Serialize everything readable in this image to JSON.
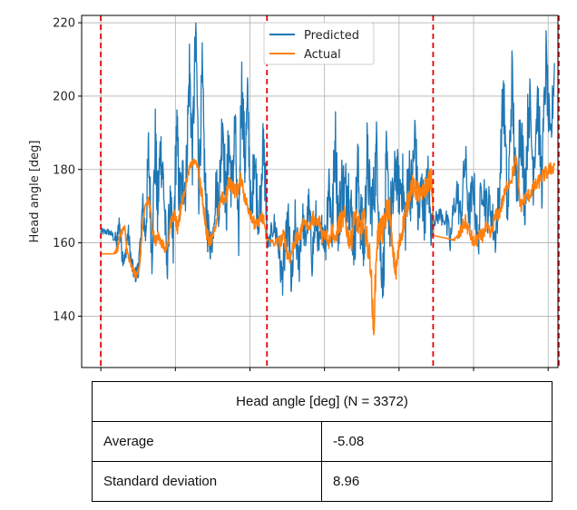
{
  "chart_data": {
    "type": "line",
    "xlabel": "",
    "ylabel": "Head angle [deg]",
    "ylim": [
      126,
      222
    ],
    "xlim": [
      -450,
      10730
    ],
    "y_ticks": [
      140,
      160,
      180,
      200,
      220
    ],
    "x_ticks": [
      0,
      1750,
      3500,
      5250,
      7000,
      8750,
      10500
    ],
    "grid": true,
    "legend": "top-center",
    "colors": {
      "Predicted": "#1f77b4",
      "Actual": "#ff7f0e",
      "boundary": "#e8000b"
    },
    "vertical_lines": [
      0,
      3900,
      7800,
      10750
    ],
    "series": [
      {
        "name": "Predicted",
        "x": [
          0,
          80,
          180,
          280,
          380,
          430,
          500,
          560,
          640,
          720,
          800,
          860,
          920,
          980,
          1050,
          1120,
          1200,
          1280,
          1330,
          1400,
          1470,
          1550,
          1620,
          1700,
          1780,
          1850,
          1930,
          2000,
          2080,
          2150,
          2230,
          2300,
          2380,
          2450,
          2500,
          2560,
          2620,
          2700,
          2780,
          2860,
          2940,
          3000,
          3080,
          3150,
          3230,
          3300,
          3380,
          3450,
          3530,
          3600,
          3680,
          3750,
          3820,
          3880,
          3900,
          3950,
          4050,
          4150,
          4250,
          4330,
          4400,
          4480,
          4560,
          4650,
          4730,
          4800,
          4880,
          4960,
          5050,
          5130,
          5200,
          5280,
          5350,
          5430,
          5500,
          5580,
          5650,
          5730,
          5800,
          5880,
          5950,
          6030,
          6100,
          6180,
          6250,
          6330,
          6400,
          6480,
          6550,
          6630,
          6700,
          6780,
          6850,
          6930,
          7000,
          7080,
          7150,
          7230,
          7300,
          7380,
          7450,
          7530,
          7600,
          7680,
          7750,
          7800,
          7900,
          8050,
          8200,
          8350,
          8450,
          8550,
          8650,
          8750,
          8850,
          8950,
          9050,
          9150,
          9250,
          9350,
          9450,
          9550,
          9650,
          9750,
          9850,
          9950,
          10050,
          10150,
          10250,
          10350,
          10450,
          10550,
          10650
        ],
        "values": [
          163,
          163,
          163,
          162,
          160,
          166,
          157,
          155,
          163,
          154,
          151,
          152,
          157,
          170,
          162,
          184,
          158,
          188,
          168,
          186,
          177,
          153,
          171,
          158,
          192,
          170,
          178,
          176,
          208,
          184,
          218,
          176,
          205,
          174,
          164,
          160,
          160,
          175,
          172,
          196,
          168,
          188,
          174,
          192,
          158,
          205,
          182,
          198,
          164,
          186,
          170,
          168,
          189,
          172,
          160,
          160,
          165,
          162,
          150,
          158,
          166,
          147,
          165,
          154,
          168,
          160,
          170,
          156,
          167,
          158,
          165,
          160,
          178,
          163,
          190,
          164,
          176,
          173,
          176,
          168,
          160,
          180,
          166,
          158,
          184,
          170,
          172,
          186,
          160,
          150,
          181,
          167,
          170,
          181,
          174,
          177,
          165,
          180,
          173,
          190,
          166,
          175,
          168,
          178,
          164,
          166,
          167,
          168,
          160,
          175,
          166,
          183,
          167,
          176,
          159,
          178,
          169,
          170,
          161,
          173,
          202,
          166,
          205,
          171,
          195,
          172,
          200,
          180,
          200,
          176,
          210,
          184,
          209
        ],
        "noise": [
          1,
          1,
          1,
          1,
          3,
          2,
          3,
          2,
          3,
          3,
          2,
          3,
          4,
          5,
          5,
          10,
          8,
          10,
          10,
          9,
          8,
          7,
          7,
          9,
          10,
          10,
          8,
          9,
          10,
          9,
          10,
          9,
          10,
          9,
          7,
          5,
          3,
          6,
          9,
          9,
          10,
          9,
          9,
          10,
          8,
          10,
          10,
          10,
          6,
          9,
          8,
          7,
          10,
          9,
          2,
          2,
          4,
          5,
          6,
          6,
          6,
          7,
          7,
          7,
          5,
          5,
          6,
          6,
          5,
          5,
          5,
          6,
          10,
          10,
          10,
          10,
          10,
          10,
          10,
          9,
          10,
          10,
          10,
          10,
          10,
          9,
          10,
          10,
          9,
          8,
          10,
          10,
          9,
          9,
          8,
          9,
          8,
          10,
          10,
          10,
          8,
          8,
          8,
          7,
          6,
          2,
          2,
          4,
          5,
          6,
          6,
          7,
          7,
          7,
          6,
          7,
          7,
          6,
          6,
          7,
          10,
          10,
          10,
          10,
          10,
          10,
          10,
          10,
          10,
          9,
          9,
          9,
          5
        ]
      },
      {
        "name": "Actual",
        "x": [
          0,
          200,
          300,
          380,
          420,
          480,
          560,
          620,
          700,
          780,
          850,
          920,
          980,
          1050,
          1120,
          1200,
          1280,
          1350,
          1430,
          1500,
          1580,
          1650,
          1730,
          1800,
          1880,
          1950,
          2030,
          2100,
          2180,
          2250,
          2330,
          2400,
          2480,
          2550,
          2620,
          2700,
          2780,
          2850,
          2930,
          3000,
          3080,
          3150,
          3230,
          3300,
          3380,
          3450,
          3530,
          3600,
          3680,
          3750,
          3830,
          3890,
          3910,
          4050,
          4200,
          4300,
          4380,
          4450,
          4530,
          4600,
          4680,
          4750,
          4830,
          4900,
          4980,
          5050,
          5130,
          5200,
          5280,
          5350,
          5430,
          5500,
          5580,
          5650,
          5730,
          5800,
          5880,
          5950,
          6030,
          6100,
          6180,
          6250,
          6330,
          6400,
          6480,
          6550,
          6630,
          6700,
          6780,
          6850,
          6930,
          7000,
          7080,
          7150,
          7230,
          7300,
          7380,
          7450,
          7530,
          7600,
          7680,
          7750,
          7790,
          7810,
          8200,
          8350,
          8450,
          8550,
          8650,
          8750,
          8850,
          8950,
          9050,
          9150,
          9250,
          9350,
          9450,
          9550,
          9650,
          9750,
          9850,
          9950,
          10050,
          10150,
          10250,
          10350,
          10450,
          10550,
          10650
        ],
        "values": [
          157,
          157,
          157,
          158,
          160,
          163,
          164,
          157,
          154,
          152,
          151,
          155,
          165,
          170,
          172,
          165,
          160,
          162,
          160,
          158,
          160,
          166,
          168,
          164,
          170,
          173,
          178,
          181,
          182,
          182,
          176,
          171,
          163,
          160,
          162,
          165,
          170,
          172,
          172,
          176,
          176,
          174,
          175,
          178,
          172,
          170,
          168,
          165,
          165,
          167,
          166,
          161,
          161,
          160,
          160,
          162,
          157,
          156,
          160,
          161,
          162,
          166,
          165,
          164,
          167,
          165,
          166,
          162,
          163,
          160,
          164,
          160,
          165,
          166,
          167,
          162,
          160,
          168,
          165,
          164,
          166,
          160,
          155,
          135,
          160,
          164,
          163,
          168,
          170,
          157,
          152,
          159,
          164,
          168,
          172,
          176,
          174,
          174,
          172,
          175,
          176,
          178,
          172,
          162,
          161,
          161,
          163,
          166,
          163,
          160,
          161,
          162,
          164,
          162,
          167,
          168,
          172,
          176,
          178,
          183,
          170,
          172,
          173,
          175,
          176,
          178,
          179,
          180,
          181
        ],
        "noise": [
          0,
          0,
          0,
          1,
          1,
          1,
          1,
          2,
          1,
          1,
          1,
          1,
          1,
          1,
          2,
          2,
          2,
          1,
          2,
          1,
          1,
          2,
          2,
          2,
          2,
          1,
          1,
          1,
          1,
          1,
          2,
          2,
          2,
          2,
          1,
          1,
          1,
          2,
          2,
          2,
          2,
          2,
          2,
          2,
          2,
          2,
          2,
          2,
          1,
          2,
          2,
          1,
          0,
          1,
          2,
          2,
          2,
          2,
          2,
          2,
          2,
          1,
          1,
          1,
          2,
          2,
          2,
          2,
          2,
          2,
          2,
          2,
          3,
          3,
          3,
          3,
          3,
          3,
          3,
          4,
          4,
          4,
          4,
          4,
          4,
          4,
          4,
          4,
          3,
          3,
          3,
          3,
          3,
          3,
          3,
          3,
          3,
          3,
          3,
          3,
          3,
          3,
          1,
          0,
          0,
          1,
          2,
          2,
          2,
          2,
          2,
          2,
          2,
          2,
          2,
          2,
          2,
          2,
          2,
          2,
          2,
          2,
          2,
          2,
          2,
          2,
          2,
          2,
          2
        ]
      }
    ]
  },
  "stats_table": {
    "title": "Head angle [deg] (N = 3372)",
    "rows": [
      {
        "label": "Average",
        "value": "-5.08"
      },
      {
        "label": "Standard deviation",
        "value": "8.96"
      }
    ]
  }
}
